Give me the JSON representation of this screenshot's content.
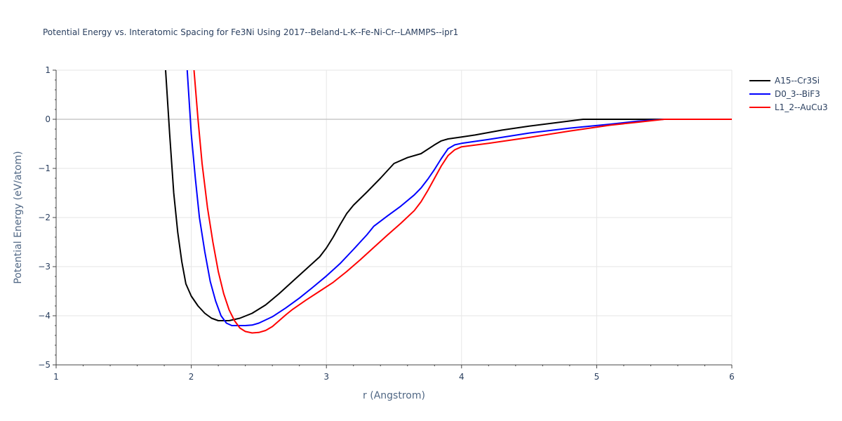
{
  "chart_data": {
    "type": "line",
    "title": "Potential Energy vs. Interatomic Spacing for Fe3Ni Using 2017--Beland-L-K--Fe-Ni-Cr--LAMMPS--ipr1",
    "xlabel": "r (Angstrom)",
    "ylabel": "Potential Energy (eV/atom)",
    "xlim": [
      1,
      6
    ],
    "ylim": [
      -5,
      1
    ],
    "xticks": [
      1,
      2,
      3,
      4,
      5,
      6
    ],
    "yticks": [
      1,
      0,
      -1,
      -2,
      -3,
      -4,
      -5
    ],
    "ytick_labels": [
      "1",
      "0",
      "−1",
      "−2",
      "−3",
      "−4",
      "−5"
    ],
    "grid": true,
    "legend_position": "top-right",
    "series": [
      {
        "name": "A15--Cr3Si",
        "color": "#000000",
        "x": [
          1.81,
          1.84,
          1.87,
          1.9,
          1.93,
          1.96,
          2.0,
          2.05,
          2.1,
          2.15,
          2.2,
          2.28,
          2.36,
          2.45,
          2.55,
          2.65,
          2.75,
          2.85,
          2.95,
          3.0,
          3.05,
          3.1,
          3.15,
          3.2,
          3.3,
          3.4,
          3.5,
          3.6,
          3.7,
          3.8,
          3.85,
          3.9,
          4.0,
          4.1,
          4.2,
          4.3,
          4.5,
          4.7,
          4.9,
          5.1,
          5.3,
          5.5,
          5.8,
          6.0
        ],
        "y": [
          1.0,
          -0.3,
          -1.5,
          -2.3,
          -2.9,
          -3.35,
          -3.6,
          -3.8,
          -3.95,
          -4.05,
          -4.1,
          -4.1,
          -4.05,
          -3.95,
          -3.78,
          -3.55,
          -3.3,
          -3.05,
          -2.8,
          -2.62,
          -2.4,
          -2.15,
          -1.92,
          -1.75,
          -1.48,
          -1.2,
          -0.9,
          -0.78,
          -0.7,
          -0.52,
          -0.44,
          -0.4,
          -0.36,
          -0.32,
          -0.27,
          -0.22,
          -0.14,
          -0.07,
          0.0,
          0.0,
          0.0,
          0.0,
          0.0,
          0.0
        ]
      },
      {
        "name": "D0_3--BiF3",
        "color": "#0000ff",
        "x": [
          1.97,
          2.0,
          2.03,
          2.06,
          2.1,
          2.14,
          2.18,
          2.22,
          2.26,
          2.3,
          2.35,
          2.4,
          2.45,
          2.5,
          2.6,
          2.7,
          2.8,
          2.9,
          3.0,
          3.1,
          3.2,
          3.3,
          3.35,
          3.45,
          3.55,
          3.65,
          3.7,
          3.75,
          3.8,
          3.85,
          3.9,
          3.95,
          4.0,
          4.2,
          4.5,
          4.8,
          5.1,
          5.3,
          5.5,
          5.8,
          6.0
        ],
        "y": [
          1.0,
          -0.3,
          -1.2,
          -2.0,
          -2.7,
          -3.3,
          -3.7,
          -4.0,
          -4.15,
          -4.2,
          -4.2,
          -4.2,
          -4.19,
          -4.15,
          -4.02,
          -3.84,
          -3.64,
          -3.42,
          -3.19,
          -2.94,
          -2.65,
          -2.35,
          -2.18,
          -1.97,
          -1.77,
          -1.54,
          -1.4,
          -1.22,
          -1.02,
          -0.8,
          -0.6,
          -0.52,
          -0.49,
          -0.41,
          -0.28,
          -0.18,
          -0.1,
          -0.04,
          0.0,
          0.0,
          0.0
        ]
      },
      {
        "name": "L1_2--AuCu3",
        "color": "#ff0000",
        "x": [
          2.02,
          2.05,
          2.08,
          2.12,
          2.16,
          2.2,
          2.24,
          2.28,
          2.32,
          2.36,
          2.4,
          2.45,
          2.5,
          2.55,
          2.6,
          2.65,
          2.7,
          2.75,
          2.85,
          2.95,
          3.05,
          3.15,
          3.25,
          3.35,
          3.45,
          3.55,
          3.65,
          3.7,
          3.75,
          3.8,
          3.85,
          3.9,
          3.95,
          4.0,
          4.2,
          4.5,
          4.8,
          5.1,
          5.3,
          5.5,
          5.8,
          6.0
        ],
        "y": [
          1.0,
          0.0,
          -0.9,
          -1.8,
          -2.5,
          -3.1,
          -3.55,
          -3.88,
          -4.1,
          -4.25,
          -4.32,
          -4.35,
          -4.34,
          -4.3,
          -4.22,
          -4.1,
          -3.98,
          -3.87,
          -3.68,
          -3.5,
          -3.32,
          -3.1,
          -2.86,
          -2.61,
          -2.36,
          -2.12,
          -1.86,
          -1.68,
          -1.45,
          -1.2,
          -0.95,
          -0.74,
          -0.62,
          -0.56,
          -0.49,
          -0.37,
          -0.24,
          -0.12,
          -0.06,
          0.0,
          0.0,
          0.0
        ]
      }
    ]
  }
}
